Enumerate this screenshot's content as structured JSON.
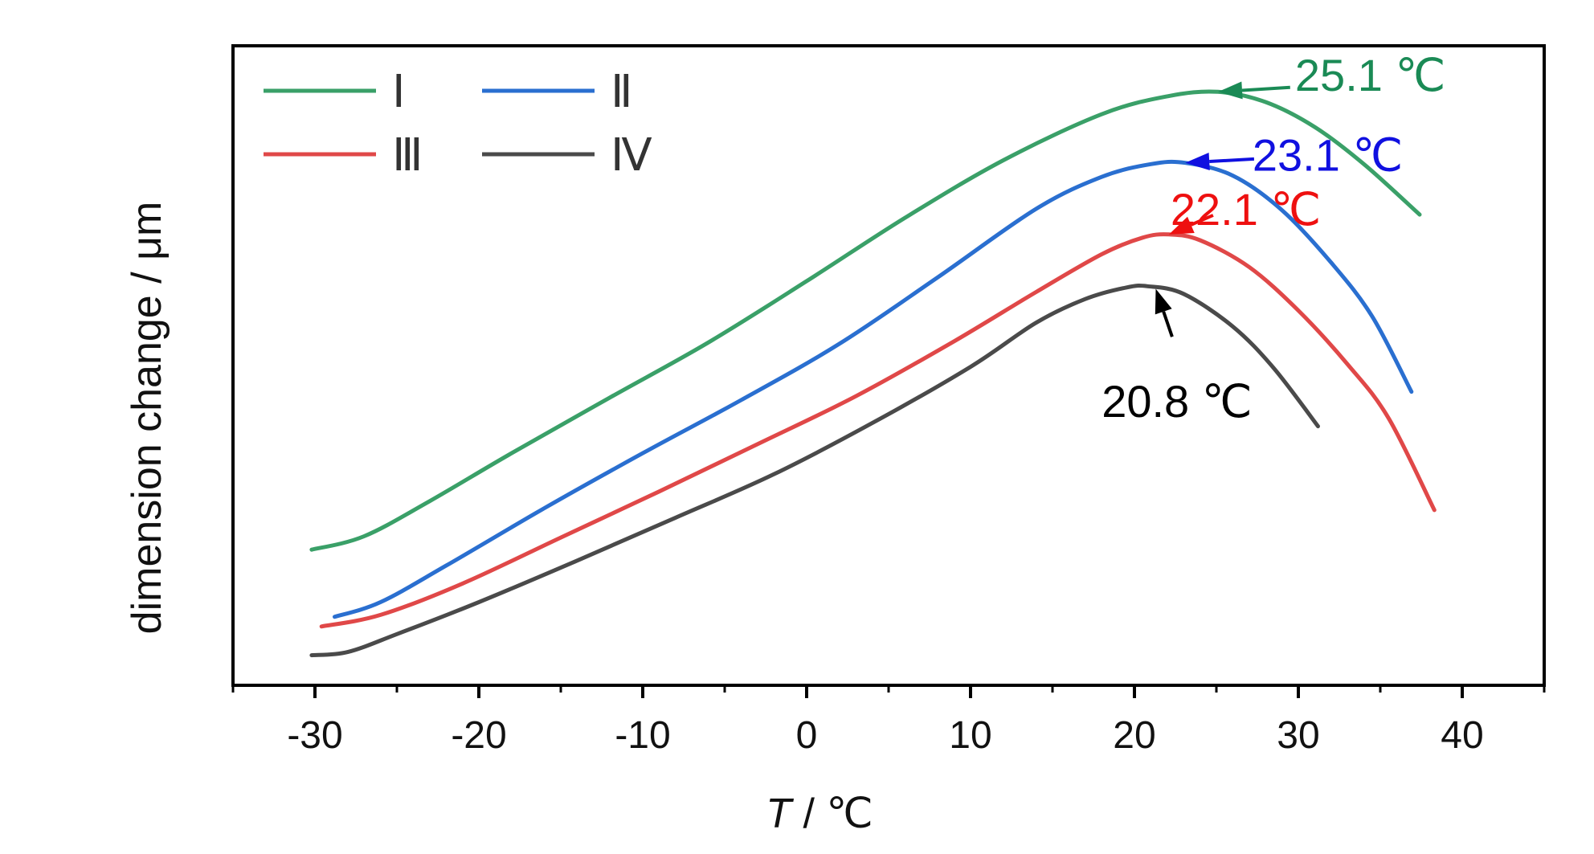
{
  "chart_data": {
    "type": "line",
    "xlabel_italic": "T",
    "xlabel_unit": " / ℃",
    "ylabel": "dimension change / μm",
    "xlim": [
      -35,
      45
    ],
    "ylim": [
      0,
      1
    ],
    "x_ticks": [
      -30,
      -20,
      -10,
      0,
      10,
      20,
      30,
      40
    ],
    "x_tick_labels": [
      "-30",
      "-20",
      "-10",
      "0",
      "10",
      "20",
      "30",
      "40"
    ],
    "y_ticks_shown": false,
    "legend_position": "top-left",
    "series": [
      {
        "name": "Ⅰ",
        "color": "#3aa068",
        "points": [
          [
            -30.2,
            0.212
          ],
          [
            -27,
            0.233
          ],
          [
            -23,
            0.288
          ],
          [
            -18,
            0.363
          ],
          [
            -12,
            0.45
          ],
          [
            -6,
            0.536
          ],
          [
            0,
            0.632
          ],
          [
            6,
            0.731
          ],
          [
            12,
            0.821
          ],
          [
            18,
            0.893
          ],
          [
            22,
            0.921
          ],
          [
            25.1,
            0.928
          ],
          [
            28,
            0.912
          ],
          [
            31,
            0.873
          ],
          [
            34,
            0.815
          ],
          [
            37.4,
            0.736
          ]
        ]
      },
      {
        "name": "Ⅱ",
        "color": "#2a6fd0",
        "points": [
          [
            -28.8,
            0.107
          ],
          [
            -26,
            0.13
          ],
          [
            -22,
            0.187
          ],
          [
            -16,
            0.277
          ],
          [
            -10,
            0.363
          ],
          [
            -4,
            0.446
          ],
          [
            2,
            0.534
          ],
          [
            8,
            0.638
          ],
          [
            14,
            0.745
          ],
          [
            18,
            0.795
          ],
          [
            21,
            0.815
          ],
          [
            23.1,
            0.817
          ],
          [
            26,
            0.797
          ],
          [
            29,
            0.743
          ],
          [
            32,
            0.661
          ],
          [
            34.5,
            0.577
          ],
          [
            36.9,
            0.459
          ]
        ]
      },
      {
        "name": "Ⅲ",
        "color": "#e04848",
        "points": [
          [
            -29.6,
            0.092
          ],
          [
            -26,
            0.11
          ],
          [
            -21,
            0.159
          ],
          [
            -15,
            0.231
          ],
          [
            -9,
            0.303
          ],
          [
            -3,
            0.377
          ],
          [
            3,
            0.452
          ],
          [
            9,
            0.538
          ],
          [
            14,
            0.615
          ],
          [
            18,
            0.674
          ],
          [
            20.5,
            0.7
          ],
          [
            22.1,
            0.705
          ],
          [
            24,
            0.696
          ],
          [
            27,
            0.654
          ],
          [
            30,
            0.586
          ],
          [
            33,
            0.502
          ],
          [
            35.5,
            0.418
          ],
          [
            38.3,
            0.274
          ]
        ]
      },
      {
        "name": "Ⅳ",
        "color": "#4a4a4a",
        "points": [
          [
            -30.2,
            0.047
          ],
          [
            -28,
            0.052
          ],
          [
            -25,
            0.08
          ],
          [
            -20,
            0.13
          ],
          [
            -14,
            0.195
          ],
          [
            -8,
            0.262
          ],
          [
            -2,
            0.33
          ],
          [
            4,
            0.41
          ],
          [
            10,
            0.498
          ],
          [
            14,
            0.567
          ],
          [
            17,
            0.604
          ],
          [
            19.5,
            0.622
          ],
          [
            20.8,
            0.624
          ],
          [
            23,
            0.612
          ],
          [
            26,
            0.561
          ],
          [
            28.5,
            0.496
          ],
          [
            31.2,
            0.405
          ]
        ]
      }
    ],
    "annotations": [
      {
        "label": "25.1 ℃",
        "color": "#1a8a55",
        "arrow_tip": [
          25.1,
          0.928
        ],
        "arrow_tail": [
          29.5,
          0.935
        ],
        "text_pos": [
          29.8,
          0.955
        ]
      },
      {
        "label": "23.1 ℃",
        "color": "#1010e0",
        "arrow_tip": [
          23.1,
          0.817
        ],
        "arrow_tail": [
          27.3,
          0.823
        ],
        "text_pos": [
          27.2,
          0.83
        ]
      },
      {
        "label": "22.1 ℃",
        "color": "#ee1010",
        "arrow_tip": [
          22.1,
          0.705
        ],
        "arrow_tail": [
          24.8,
          0.735
        ],
        "text_pos": [
          22.2,
          0.745
        ]
      },
      {
        "label": "20.8 ℃",
        "color": "#000000",
        "arrow_tip": [
          21.3,
          0.62
        ],
        "arrow_tail": [
          22.3,
          0.545
        ],
        "text_pos": [
          18.0,
          0.445
        ]
      }
    ]
  }
}
